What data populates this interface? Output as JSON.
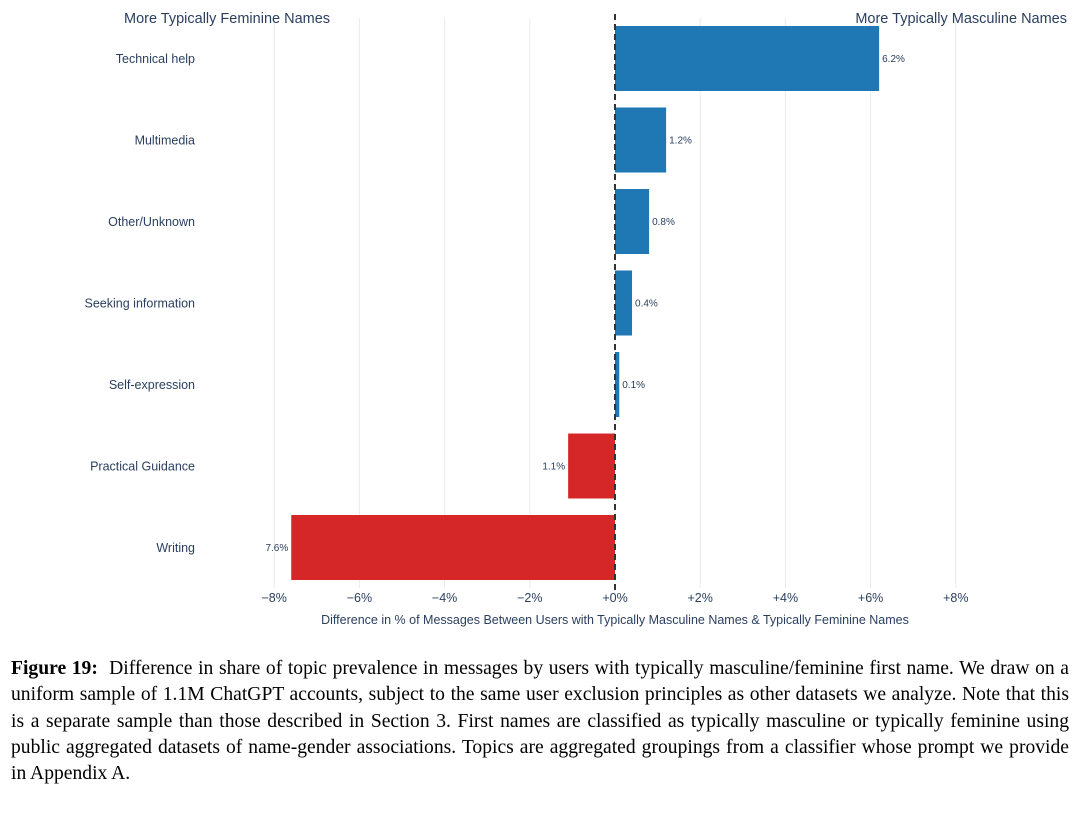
{
  "chart_data": {
    "type": "bar",
    "orientation": "horizontal",
    "left_annotation": "More Typically Feminine Names",
    "right_annotation": "More Typically Masculine Names",
    "xlabel": "Difference in % of Messages Between Users with Typically Masculine Names & Typically Feminine Names",
    "ylabel": "",
    "xlim": [
      -8.8,
      8.2
    ],
    "x_ticks": [
      -8,
      -6,
      -4,
      -2,
      0,
      2,
      4,
      6,
      8
    ],
    "x_tick_labels": [
      "−8%",
      "−6%",
      "−4%",
      "−2%",
      "+0%",
      "+2%",
      "+4%",
      "+6%",
      "+8%"
    ],
    "grid": true,
    "zero_line": "dashed",
    "categories": [
      "Technical help",
      "Multimedia",
      "Other/Unknown",
      "Seeking information",
      "Self-expression",
      "Practical Guidance",
      "Writing"
    ],
    "values": [
      6.2,
      1.2,
      0.8,
      0.4,
      0.1,
      -1.1,
      -7.6
    ],
    "value_labels": [
      "6.2%",
      "1.2%",
      "0.8%",
      "0.4%",
      "0.1%",
      "1.1%",
      "7.6%"
    ],
    "colors": {
      "positive": "#1f77b4",
      "negative": "#d62728"
    }
  },
  "caption": {
    "label": "Figure 19:",
    "text": "Difference in share of topic prevalence in messages by users with typically masculine/feminine first name. We draw on a uniform sample of 1.1M ChatGPT accounts, subject to the same user exclusion principles as other datasets we analyze. Note that this is a separate sample than those described in Section 3. First names are classified as typically masculine or typically feminine using public aggregated datasets of name-gender associations. Topics are aggregated groupings from a classifier whose prompt we provide in Appendix A."
  }
}
